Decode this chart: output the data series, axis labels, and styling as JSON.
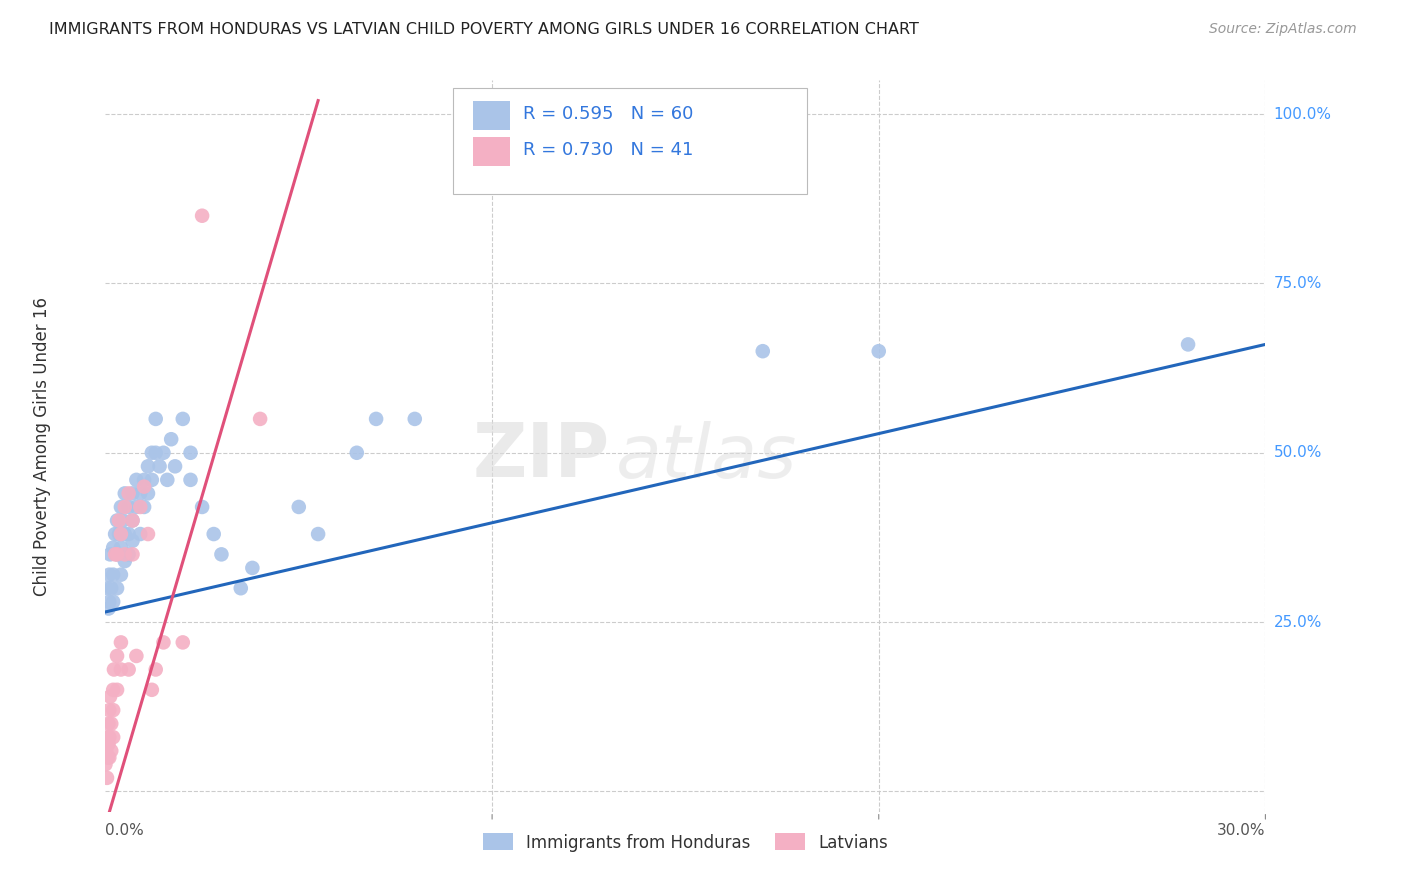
{
  "title": "IMMIGRANTS FROM HONDURAS VS LATVIAN CHILD POVERTY AMONG GIRLS UNDER 16 CORRELATION CHART",
  "source": "Source: ZipAtlas.com",
  "ylabel": "Child Poverty Among Girls Under 16",
  "legend_items": [
    {
      "label": "Immigrants from Honduras",
      "R": "0.595",
      "N": "60",
      "color": "#aac4e8",
      "line_color": "#2266bb"
    },
    {
      "label": "Latvians",
      "R": "0.730",
      "N": "41",
      "color": "#f4b0c4",
      "line_color": "#e0507a"
    }
  ],
  "watermark_zip": "ZIP",
  "watermark_atlas": "atlas",
  "background_color": "#ffffff",
  "grid_color": "#cccccc",
  "blue_scatter": [
    [
      0.0005,
      0.3
    ],
    [
      0.0008,
      0.27
    ],
    [
      0.001,
      0.32
    ],
    [
      0.001,
      0.28
    ],
    [
      0.0012,
      0.35
    ],
    [
      0.0015,
      0.3
    ],
    [
      0.002,
      0.32
    ],
    [
      0.002,
      0.36
    ],
    [
      0.002,
      0.28
    ],
    [
      0.0025,
      0.38
    ],
    [
      0.003,
      0.35
    ],
    [
      0.003,
      0.3
    ],
    [
      0.003,
      0.4
    ],
    [
      0.0035,
      0.38
    ],
    [
      0.004,
      0.42
    ],
    [
      0.004,
      0.36
    ],
    [
      0.004,
      0.32
    ],
    [
      0.0045,
      0.4
    ],
    [
      0.005,
      0.38
    ],
    [
      0.005,
      0.44
    ],
    [
      0.005,
      0.34
    ],
    [
      0.006,
      0.42
    ],
    [
      0.006,
      0.38
    ],
    [
      0.006,
      0.35
    ],
    [
      0.007,
      0.44
    ],
    [
      0.007,
      0.4
    ],
    [
      0.007,
      0.37
    ],
    [
      0.008,
      0.46
    ],
    [
      0.008,
      0.42
    ],
    [
      0.009,
      0.44
    ],
    [
      0.009,
      0.38
    ],
    [
      0.01,
      0.46
    ],
    [
      0.01,
      0.42
    ],
    [
      0.011,
      0.48
    ],
    [
      0.011,
      0.44
    ],
    [
      0.012,
      0.5
    ],
    [
      0.012,
      0.46
    ],
    [
      0.013,
      0.55
    ],
    [
      0.013,
      0.5
    ],
    [
      0.014,
      0.48
    ],
    [
      0.015,
      0.5
    ],
    [
      0.016,
      0.46
    ],
    [
      0.017,
      0.52
    ],
    [
      0.018,
      0.48
    ],
    [
      0.02,
      0.55
    ],
    [
      0.022,
      0.5
    ],
    [
      0.022,
      0.46
    ],
    [
      0.025,
      0.42
    ],
    [
      0.028,
      0.38
    ],
    [
      0.03,
      0.35
    ],
    [
      0.035,
      0.3
    ],
    [
      0.038,
      0.33
    ],
    [
      0.05,
      0.42
    ],
    [
      0.055,
      0.38
    ],
    [
      0.065,
      0.5
    ],
    [
      0.07,
      0.55
    ],
    [
      0.08,
      0.55
    ],
    [
      0.17,
      0.65
    ],
    [
      0.2,
      0.65
    ],
    [
      0.28,
      0.66
    ]
  ],
  "pink_scatter": [
    [
      0.0,
      0.04
    ],
    [
      0.0002,
      0.06
    ],
    [
      0.0004,
      0.02
    ],
    [
      0.0005,
      0.08
    ],
    [
      0.0006,
      0.05
    ],
    [
      0.0008,
      0.1
    ],
    [
      0.0008,
      0.07
    ],
    [
      0.001,
      0.12
    ],
    [
      0.001,
      0.08
    ],
    [
      0.001,
      0.05
    ],
    [
      0.0012,
      0.14
    ],
    [
      0.0015,
      0.1
    ],
    [
      0.0015,
      0.06
    ],
    [
      0.002,
      0.15
    ],
    [
      0.002,
      0.12
    ],
    [
      0.002,
      0.08
    ],
    [
      0.0022,
      0.18
    ],
    [
      0.0025,
      0.35
    ],
    [
      0.003,
      0.2
    ],
    [
      0.003,
      0.15
    ],
    [
      0.003,
      0.35
    ],
    [
      0.0035,
      0.4
    ],
    [
      0.004,
      0.38
    ],
    [
      0.004,
      0.22
    ],
    [
      0.004,
      0.18
    ],
    [
      0.005,
      0.42
    ],
    [
      0.005,
      0.35
    ],
    [
      0.006,
      0.44
    ],
    [
      0.006,
      0.18
    ],
    [
      0.007,
      0.4
    ],
    [
      0.007,
      0.35
    ],
    [
      0.008,
      0.2
    ],
    [
      0.009,
      0.42
    ],
    [
      0.01,
      0.45
    ],
    [
      0.011,
      0.38
    ],
    [
      0.012,
      0.15
    ],
    [
      0.013,
      0.18
    ],
    [
      0.015,
      0.22
    ],
    [
      0.02,
      0.22
    ],
    [
      0.025,
      0.85
    ],
    [
      0.04,
      0.55
    ]
  ],
  "blue_line": {
    "x0": 0.0,
    "y0": 0.265,
    "x1": 0.3,
    "y1": 0.66
  },
  "pink_line": {
    "x0": 0.0,
    "y0": -0.05,
    "x1": 0.055,
    "y1": 1.02
  },
  "xlim": [
    0.0,
    0.3
  ],
  "ylim": [
    -0.03,
    1.05
  ],
  "x_ticks": [
    0.0,
    0.1,
    0.2,
    0.3
  ],
  "y_ticks": [
    0.0,
    0.25,
    0.5,
    0.75,
    1.0
  ]
}
